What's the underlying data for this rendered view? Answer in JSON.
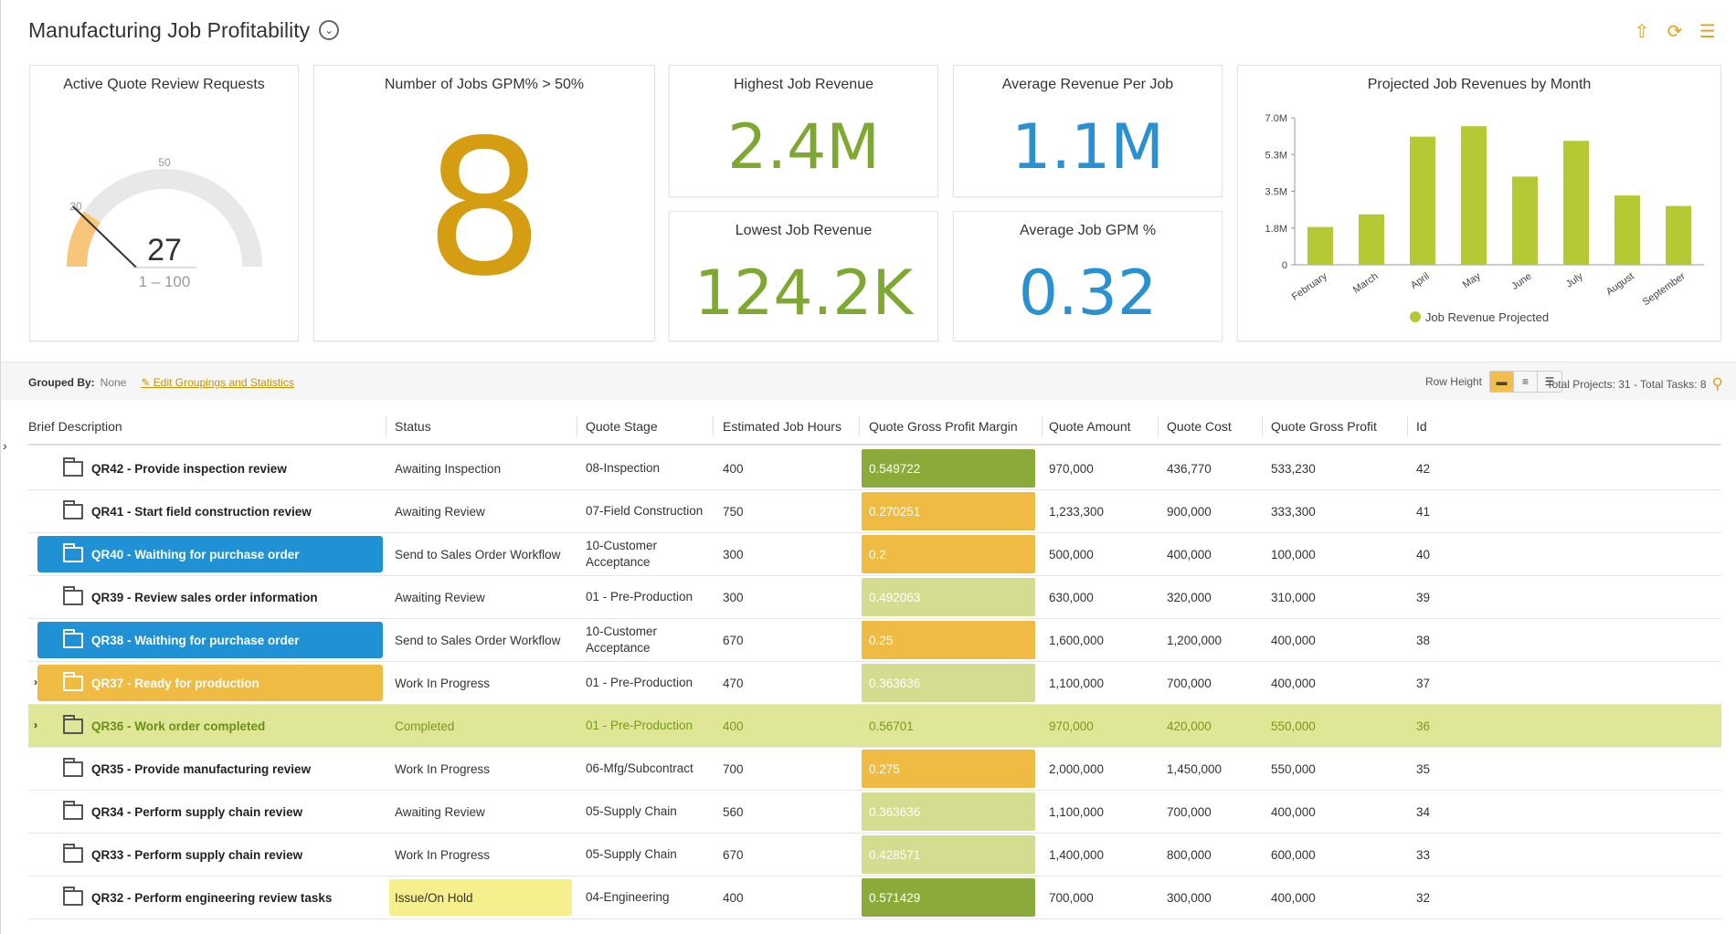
{
  "header": {
    "title": "Manufacturing Job Profitability"
  },
  "cards": {
    "gauge": {
      "title": "Active Quote Review Requests",
      "value": "27",
      "range": "1 – 100",
      "tick_low": "20",
      "tick_mid": "50",
      "value_num": 27,
      "threshold": 20,
      "min": 1,
      "max": 100
    },
    "jobs_gpm": {
      "title": "Number of Jobs GPM% > 50%",
      "value": "8"
    },
    "highest": {
      "title": "Highest Job Revenue",
      "value": "2.4M"
    },
    "avg_rev": {
      "title": "Average Revenue Per Job",
      "value": "1.1M"
    },
    "lowest": {
      "title": "Lowest Job Revenue",
      "value": "124.2K"
    },
    "avg_gpm": {
      "title": "Average Job GPM %",
      "value": "0.32"
    }
  },
  "chart_data": {
    "type": "bar",
    "title": "Projected Job Revenues by Month",
    "categories": [
      "February",
      "March",
      "April",
      "May",
      "June",
      "July",
      "August",
      "September"
    ],
    "series": [
      {
        "name": "Job Revenue Projected",
        "values": [
          1.8,
          2.4,
          6.1,
          6.6,
          4.2,
          5.9,
          3.3,
          2.8
        ]
      }
    ],
    "yticks": [
      "0",
      "1.8M",
      "3.5M",
      "5.3M",
      "7.0M"
    ],
    "ylim": [
      0,
      7.0
    ],
    "color": "#b5c935",
    "legend": "bottom"
  },
  "toolbar": {
    "grouped_label": "Grouped By:",
    "grouped_value": "None",
    "edit_link": "Edit Groupings and Statistics",
    "row_height_label": "Row Height",
    "totals": "Total Projects: 31 - Total Tasks: 8"
  },
  "table": {
    "headers": [
      "Brief Description",
      "Status",
      "Quote Stage",
      "Estimated Job Hours",
      "Quote Gross Profit Margin",
      "Quote Amount",
      "Quote Cost",
      "Quote Gross Profit",
      "Id"
    ],
    "rows": [
      {
        "desc": "QR42 - Provide inspection review",
        "status": "Awaiting Inspection",
        "stage": "08-Inspection",
        "hours": "400",
        "margin": "0.549722",
        "amount": "970,000",
        "cost": "436,770",
        "gp": "533,230",
        "id": "42"
      },
      {
        "desc": "QR41 - Start field construction review",
        "status": "Awaiting Review",
        "stage": "07-Field Construction",
        "hours": "750",
        "margin": "0.270251",
        "amount": "1,233,300",
        "cost": "900,000",
        "gp": "333,300",
        "id": "41"
      },
      {
        "desc": "QR40 - Waithing for purchase order",
        "status": "Send to Sales Order Workflow",
        "stage": "10-Customer Acceptance",
        "hours": "300",
        "margin": "0.2",
        "amount": "500,000",
        "cost": "400,000",
        "gp": "100,000",
        "id": "40"
      },
      {
        "desc": "QR39 - Review sales order information",
        "status": "Awaiting Review",
        "stage": "01 - Pre-Production",
        "hours": "300",
        "margin": "0.492063",
        "amount": "630,000",
        "cost": "320,000",
        "gp": "310,000",
        "id": "39"
      },
      {
        "desc": "QR38 - Waithing for purchase order",
        "status": "Send to Sales Order Workflow",
        "stage": "10-Customer Acceptance",
        "hours": "670",
        "margin": "0.25",
        "amount": "1,600,000",
        "cost": "1,200,000",
        "gp": "400,000",
        "id": "38"
      },
      {
        "desc": "QR37 - Ready for production",
        "status": "Work In Progress",
        "stage": "01 - Pre-Production",
        "hours": "470",
        "margin": "0.363636",
        "amount": "1,100,000",
        "cost": "700,000",
        "gp": "400,000",
        "id": "37"
      },
      {
        "desc": "QR36 - Work order completed",
        "status": "Completed",
        "stage": "01 - Pre-Production",
        "hours": "400",
        "margin": "0.56701",
        "amount": "970,000",
        "cost": "420,000",
        "gp": "550,000",
        "id": "36"
      },
      {
        "desc": "QR35 - Provide manufacturing review",
        "status": "Work In Progress",
        "stage": "06-Mfg/Subcontract",
        "hours": "700",
        "margin": "0.275",
        "amount": "2,000,000",
        "cost": "1,450,000",
        "gp": "550,000",
        "id": "35"
      },
      {
        "desc": "QR34 - Perform supply chain review",
        "status": "Awaiting Review",
        "stage": "05-Supply Chain",
        "hours": "560",
        "margin": "0.363636",
        "amount": "1,100,000",
        "cost": "700,000",
        "gp": "400,000",
        "id": "34"
      },
      {
        "desc": "QR33 - Perform supply chain review",
        "status": "Work In Progress",
        "stage": "05-Supply Chain",
        "hours": "670",
        "margin": "0.428571",
        "amount": "1,400,000",
        "cost": "800,000",
        "gp": "600,000",
        "id": "33"
      },
      {
        "desc": "QR32 - Perform engineering review tasks",
        "status": "Issue/On Hold",
        "stage": "04-Engineering",
        "hours": "400",
        "margin": "0.571429",
        "amount": "700,000",
        "cost": "300,000",
        "gp": "400,000",
        "id": "32"
      }
    ]
  },
  "colors": {
    "margin_high": "#8aab3a",
    "margin_low": "#f0bb43",
    "margin_mid": "#d3dc8f",
    "blue": "#2191d6",
    "orange_value": "#d4a017",
    "green_value": "#7fa832",
    "blue_value": "#2b90d0"
  }
}
